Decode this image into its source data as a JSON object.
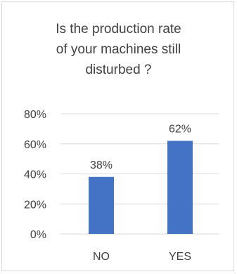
{
  "chart_data": {
    "type": "bar",
    "title_lines": [
      "Is the production rate",
      "of your machines still",
      "disturbed ?"
    ],
    "categories": [
      "NO",
      "YES"
    ],
    "values": [
      38,
      62
    ],
    "data_labels": [
      "38%",
      "62%"
    ],
    "y_ticks": [
      0,
      20,
      40,
      60,
      80
    ],
    "y_tick_labels": [
      "0%",
      "20%",
      "40%",
      "60%",
      "80%"
    ],
    "ylim": [
      0,
      80
    ],
    "xlabel": "",
    "ylabel": "",
    "grid": true,
    "legend": "none",
    "colors": {
      "bar": "#4472c4",
      "grid": "#d9d9d9",
      "text": "#404040"
    }
  }
}
